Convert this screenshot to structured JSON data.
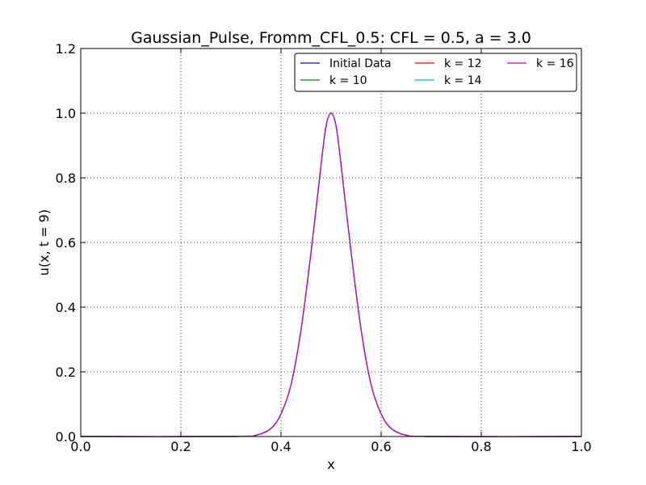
{
  "chart_data": {
    "type": "line",
    "title": "Gaussian_Pulse, Fromm_CFL_0.5: CFL = 0.5, a = 3.0",
    "xlabel": "x",
    "ylabel": "u(x, t = 9)",
    "xlim": [
      0.0,
      1.0
    ],
    "ylim": [
      0.0,
      1.2
    ],
    "x_ticks": [
      "0.0",
      "0.2",
      "0.4",
      "0.6",
      "0.8",
      "1.0"
    ],
    "y_ticks": [
      "0.0",
      "0.2",
      "0.4",
      "0.6",
      "0.8",
      "1.0",
      "1.2"
    ],
    "grid": true,
    "legend_position": "top-right",
    "legend_columns": 3,
    "x": [
      0.0,
      0.3,
      0.35,
      0.38,
      0.4,
      0.42,
      0.44,
      0.46,
      0.48,
      0.49,
      0.5,
      0.51,
      0.52,
      0.54,
      0.56,
      0.58,
      0.6,
      0.62,
      0.65,
      0.7,
      1.0
    ],
    "series": [
      {
        "name": "Initial Data",
        "color": "#0000ff",
        "values": [
          0.0,
          0.0,
          0.004,
          0.025,
          0.07,
          0.16,
          0.33,
          0.57,
          0.84,
          0.96,
          1.0,
          0.96,
          0.84,
          0.57,
          0.33,
          0.16,
          0.07,
          0.025,
          0.004,
          0.0,
          0.0
        ]
      },
      {
        "name": "k = 10",
        "color": "#008000",
        "values": [
          0.0,
          0.0,
          0.004,
          0.025,
          0.07,
          0.16,
          0.33,
          0.57,
          0.84,
          0.96,
          1.0,
          0.96,
          0.84,
          0.57,
          0.33,
          0.16,
          0.07,
          0.025,
          0.004,
          0.0,
          0.0
        ]
      },
      {
        "name": "k = 12",
        "color": "#ff0000",
        "values": [
          0.0,
          0.0,
          0.004,
          0.025,
          0.07,
          0.16,
          0.33,
          0.57,
          0.84,
          0.96,
          1.0,
          0.96,
          0.84,
          0.57,
          0.33,
          0.16,
          0.07,
          0.025,
          0.004,
          0.0,
          0.0
        ]
      },
      {
        "name": "k = 14",
        "color": "#00bfbf",
        "values": [
          0.0,
          0.0,
          0.004,
          0.025,
          0.07,
          0.16,
          0.33,
          0.57,
          0.84,
          0.96,
          1.0,
          0.96,
          0.84,
          0.57,
          0.33,
          0.16,
          0.07,
          0.025,
          0.004,
          0.0,
          0.0
        ]
      },
      {
        "name": "k = 16",
        "color": "#bf00bf",
        "values": [
          0.0,
          0.0,
          0.004,
          0.025,
          0.07,
          0.16,
          0.33,
          0.57,
          0.84,
          0.96,
          1.0,
          0.96,
          0.84,
          0.57,
          0.33,
          0.16,
          0.07,
          0.025,
          0.004,
          0.0,
          0.0
        ]
      }
    ]
  }
}
